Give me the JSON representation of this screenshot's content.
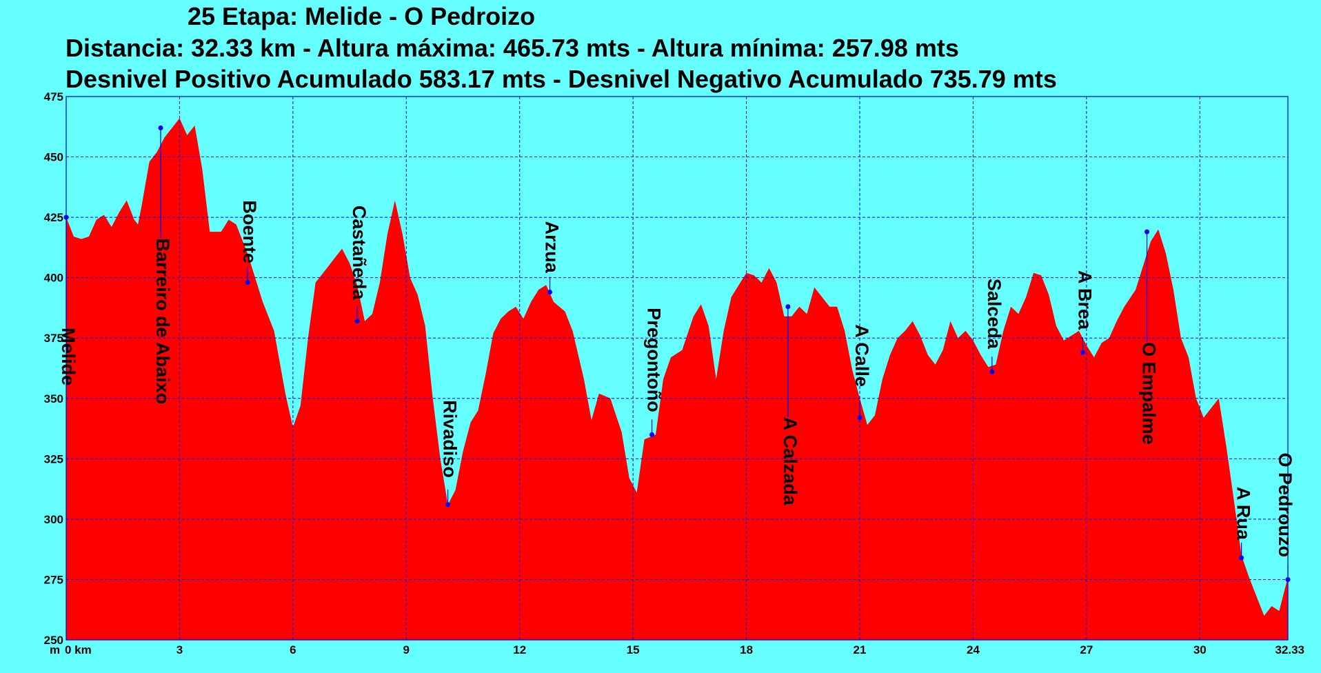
{
  "header": {
    "line1": "25 Etapa: Melide - O Pedroizo",
    "line2": "Distancia: 32.33 km - Altura máxima: 465.73 mts - Altura mínima: 257.98 mts",
    "line3": "Desnivel Positivo Acumulado 583.17 mts - Desnivel Negativo Acumulado 735.79 mts"
  },
  "colors": {
    "background": "#66ffff",
    "fill": "#ff0000",
    "grid": "#0000ff",
    "text": "#000000"
  },
  "chart_data": {
    "type": "area",
    "title": "25 Etapa: Melide - O Pedroizo",
    "xlabel": "",
    "ylabel": "",
    "xlim": [
      0,
      32.33
    ],
    "ylim": [
      250,
      475
    ],
    "grid": true,
    "x_ticks": [
      {
        "value": 0,
        "label": "0 km"
      },
      {
        "value": 3,
        "label": "3"
      },
      {
        "value": 6,
        "label": "6"
      },
      {
        "value": 9,
        "label": "9"
      },
      {
        "value": 12,
        "label": "12"
      },
      {
        "value": 15,
        "label": "15"
      },
      {
        "value": 18,
        "label": "18"
      },
      {
        "value": 21,
        "label": "21"
      },
      {
        "value": 24,
        "label": "24"
      },
      {
        "value": 27,
        "label": "27"
      },
      {
        "value": 30,
        "label": "30"
      },
      {
        "value": 32.33,
        "label": "32.33"
      }
    ],
    "x_unit_label": "m",
    "y_ticks": [
      250,
      275,
      300,
      325,
      350,
      375,
      400,
      425,
      450,
      475
    ],
    "series": [
      {
        "points": [
          [
            0,
            425
          ],
          [
            0.2,
            417
          ],
          [
            0.4,
            416
          ],
          [
            0.6,
            417
          ],
          [
            0.8,
            424
          ],
          [
            1.0,
            426
          ],
          [
            1.2,
            421
          ],
          [
            1.4,
            427
          ],
          [
            1.6,
            432
          ],
          [
            1.8,
            424
          ],
          [
            1.9,
            422
          ],
          [
            2.0,
            430
          ],
          [
            2.2,
            448
          ],
          [
            2.4,
            452
          ],
          [
            2.6,
            458
          ],
          [
            2.8,
            462
          ],
          [
            3.0,
            466
          ],
          [
            3.2,
            459
          ],
          [
            3.4,
            463
          ],
          [
            3.6,
            445
          ],
          [
            3.8,
            419
          ],
          [
            4.1,
            419
          ],
          [
            4.3,
            424
          ],
          [
            4.5,
            422
          ],
          [
            4.8,
            410
          ],
          [
            5.2,
            390
          ],
          [
            5.5,
            378
          ],
          [
            5.8,
            352
          ],
          [
            6.0,
            338
          ],
          [
            6.2,
            347
          ],
          [
            6.4,
            375
          ],
          [
            6.6,
            398
          ],
          [
            6.9,
            404
          ],
          [
            7.1,
            408
          ],
          [
            7.3,
            412
          ],
          [
            7.5,
            406
          ],
          [
            7.7,
            397
          ],
          [
            7.9,
            382
          ],
          [
            8.1,
            385
          ],
          [
            8.3,
            398
          ],
          [
            8.5,
            418
          ],
          [
            8.7,
            432
          ],
          [
            8.9,
            418
          ],
          [
            9.1,
            400
          ],
          [
            9.3,
            393
          ],
          [
            9.5,
            380
          ],
          [
            9.7,
            350
          ],
          [
            9.9,
            325
          ],
          [
            10.1,
            306
          ],
          [
            10.3,
            312
          ],
          [
            10.5,
            328
          ],
          [
            10.7,
            340
          ],
          [
            10.9,
            345
          ],
          [
            11.1,
            360
          ],
          [
            11.3,
            377
          ],
          [
            11.5,
            383
          ],
          [
            11.7,
            386
          ],
          [
            11.9,
            388
          ],
          [
            12.1,
            383
          ],
          [
            12.3,
            390
          ],
          [
            12.5,
            395
          ],
          [
            12.7,
            397
          ],
          [
            12.9,
            390
          ],
          [
            13.2,
            386
          ],
          [
            13.4,
            378
          ],
          [
            13.7,
            358
          ],
          [
            13.9,
            341
          ],
          [
            14.1,
            352
          ],
          [
            14.4,
            350
          ],
          [
            14.7,
            336
          ],
          [
            14.9,
            317
          ],
          [
            15.1,
            311
          ],
          [
            15.3,
            333
          ],
          [
            15.6,
            335
          ],
          [
            15.8,
            358
          ],
          [
            16.0,
            367
          ],
          [
            16.3,
            370
          ],
          [
            16.6,
            384
          ],
          [
            16.8,
            389
          ],
          [
            17.0,
            380
          ],
          [
            17.2,
            358
          ],
          [
            17.4,
            378
          ],
          [
            17.6,
            392
          ],
          [
            17.8,
            397
          ],
          [
            18.0,
            402
          ],
          [
            18.2,
            401
          ],
          [
            18.4,
            398
          ],
          [
            18.6,
            404
          ],
          [
            18.8,
            398
          ],
          [
            19.0,
            384
          ],
          [
            19.2,
            384
          ],
          [
            19.4,
            388
          ],
          [
            19.6,
            385
          ],
          [
            19.8,
            396
          ],
          [
            20.0,
            392
          ],
          [
            20.2,
            388
          ],
          [
            20.4,
            388
          ],
          [
            20.6,
            378
          ],
          [
            20.8,
            362
          ],
          [
            21.0,
            350
          ],
          [
            21.2,
            339
          ],
          [
            21.4,
            343
          ],
          [
            21.6,
            358
          ],
          [
            21.8,
            368
          ],
          [
            22.0,
            375
          ],
          [
            22.2,
            378
          ],
          [
            22.4,
            382
          ],
          [
            22.6,
            376
          ],
          [
            22.8,
            368
          ],
          [
            23.0,
            364
          ],
          [
            23.2,
            370
          ],
          [
            23.4,
            382
          ],
          [
            23.6,
            375
          ],
          [
            23.8,
            378
          ],
          [
            24.0,
            374
          ],
          [
            24.2,
            368
          ],
          [
            24.4,
            363
          ],
          [
            24.6,
            364
          ],
          [
            24.8,
            378
          ],
          [
            25.0,
            388
          ],
          [
            25.2,
            385
          ],
          [
            25.4,
            392
          ],
          [
            25.6,
            402
          ],
          [
            25.8,
            401
          ],
          [
            26.0,
            393
          ],
          [
            26.2,
            380
          ],
          [
            26.4,
            374
          ],
          [
            26.6,
            376
          ],
          [
            26.8,
            378
          ],
          [
            27.0,
            372
          ],
          [
            27.2,
            367
          ],
          [
            27.4,
            373
          ],
          [
            27.6,
            375
          ],
          [
            27.8,
            382
          ],
          [
            28.0,
            388
          ],
          [
            28.3,
            395
          ],
          [
            28.5,
            405
          ],
          [
            28.7,
            415
          ],
          [
            28.9,
            420
          ],
          [
            29.1,
            410
          ],
          [
            29.3,
            395
          ],
          [
            29.5,
            375
          ],
          [
            29.7,
            367
          ],
          [
            29.9,
            350
          ],
          [
            30.1,
            342
          ],
          [
            30.3,
            346
          ],
          [
            30.5,
            350
          ],
          [
            30.7,
            330
          ],
          [
            30.9,
            308
          ],
          [
            31.1,
            285
          ],
          [
            31.3,
            276
          ],
          [
            31.5,
            268
          ],
          [
            31.7,
            260
          ],
          [
            31.9,
            264
          ],
          [
            32.1,
            262
          ],
          [
            32.33,
            276
          ]
        ]
      }
    ],
    "waypoints": [
      {
        "name": "Melide",
        "x": 0.0,
        "y": 425
      },
      {
        "name": "Barreiro de Abaixo",
        "x": 2.5,
        "y": 462
      },
      {
        "name": "Boente",
        "x": 4.8,
        "y": 398
      },
      {
        "name": "Castañeda",
        "x": 7.7,
        "y": 382
      },
      {
        "name": "Rivadiso",
        "x": 10.1,
        "y": 306
      },
      {
        "name": "Arzua",
        "x": 12.8,
        "y": 394
      },
      {
        "name": "Pregontoño",
        "x": 15.5,
        "y": 335
      },
      {
        "name": "A Calzada",
        "x": 19.1,
        "y": 388
      },
      {
        "name": "A Calle",
        "x": 21.0,
        "y": 342
      },
      {
        "name": "Salceda",
        "x": 24.5,
        "y": 361
      },
      {
        "name": "A Brea",
        "x": 26.9,
        "y": 369
      },
      {
        "name": "O Empalme",
        "x": 28.6,
        "y": 419
      },
      {
        "name": "A Rua",
        "x": 31.1,
        "y": 284
      },
      {
        "name": "O Pedrouzo",
        "x": 32.33,
        "y": 275
      }
    ]
  }
}
